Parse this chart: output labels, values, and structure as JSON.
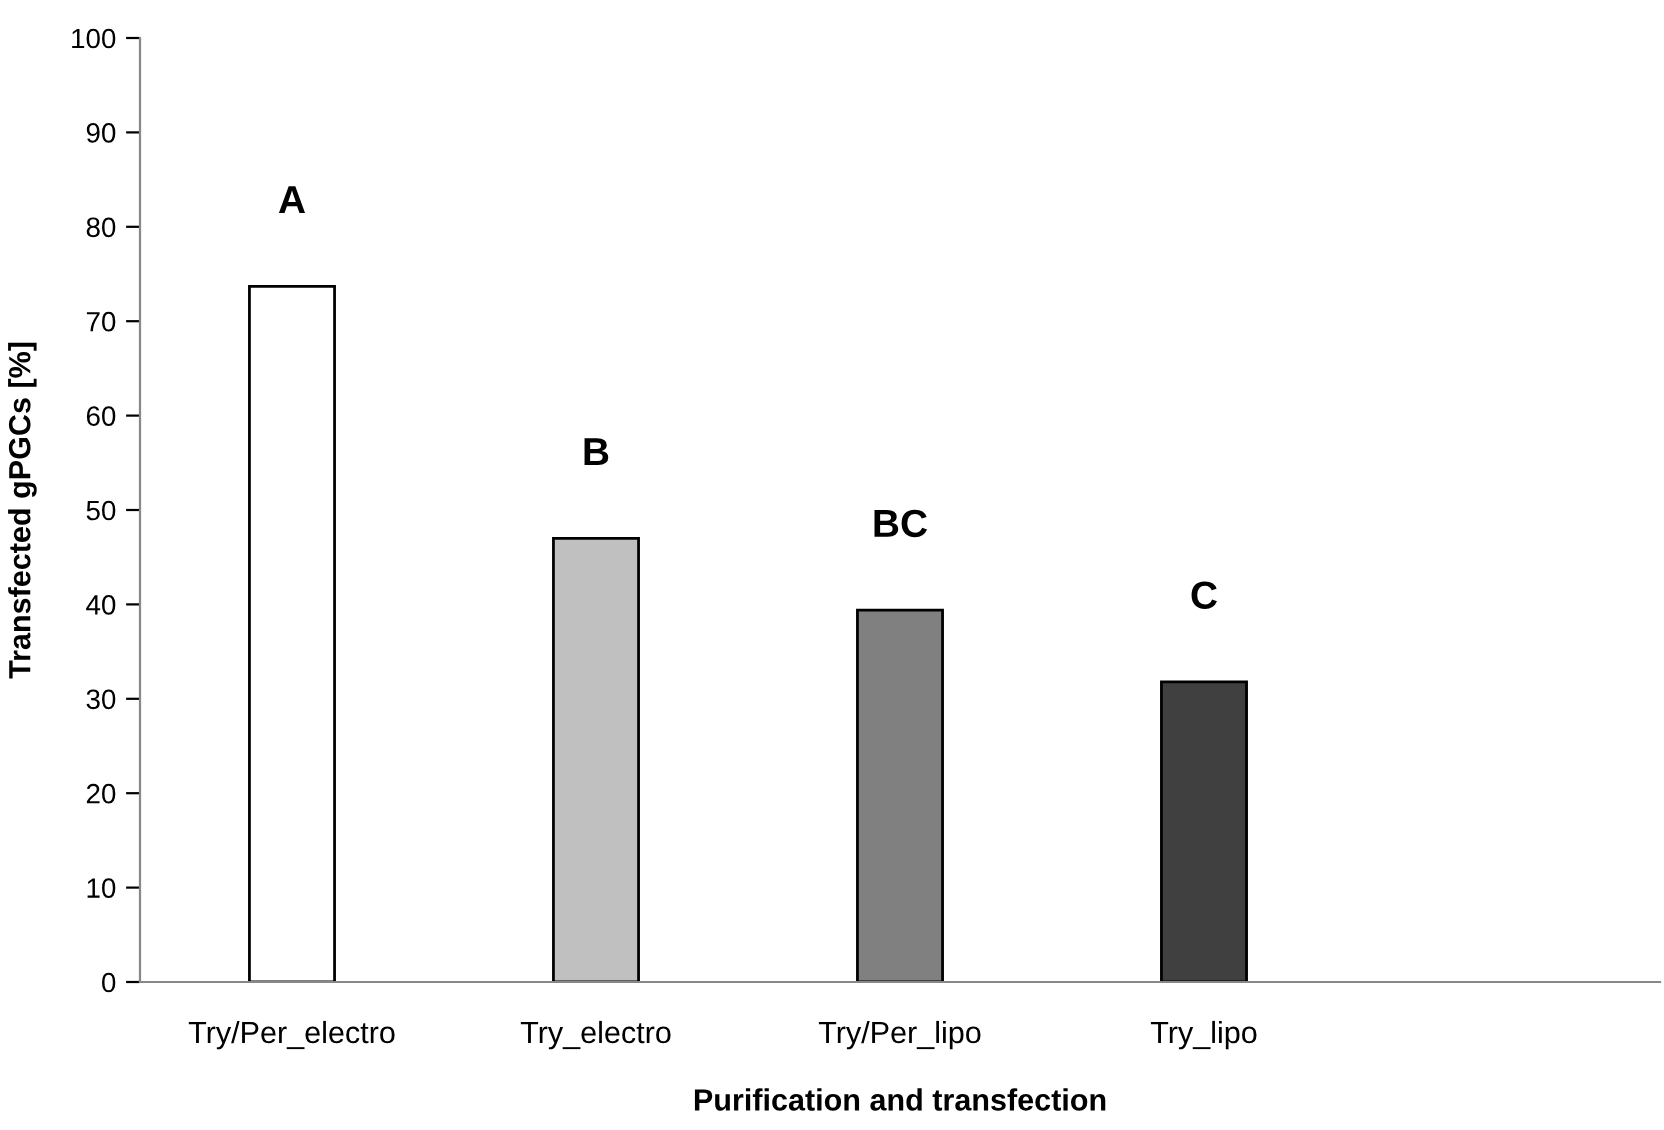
{
  "chart_data": {
    "type": "bar",
    "xlabel": "Purification and transfection",
    "ylabel": "Transfected gPGCs [%]",
    "categories": [
      "Try/Per_electro",
      "Try_electro",
      "Try/Per_lipo",
      "Try_lipo",
      null
    ],
    "values": [
      73.7,
      47.0,
      39.4,
      31.8,
      null
    ],
    "colors": [
      "#ffffff",
      "#c0c0c0",
      "#808080",
      "#404040",
      "#404040"
    ],
    "ylim": [
      0,
      100
    ],
    "yticks": [
      0,
      10,
      20,
      30,
      40,
      50,
      60,
      70,
      80,
      90,
      100
    ],
    "grid": false,
    "annotations": [
      "A",
      "B",
      "BC",
      "C"
    ]
  }
}
